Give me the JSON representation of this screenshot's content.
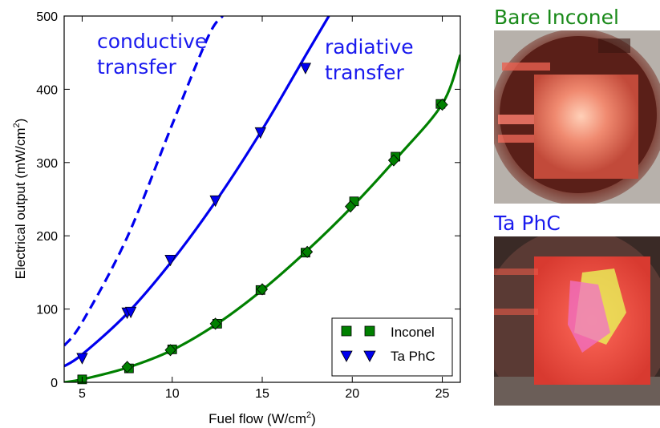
{
  "colors": {
    "inconel": "#008000",
    "taphc": "#0000ee",
    "annotation": "#1a1aee",
    "photo_title_inconel": "#1a8a1a",
    "photo_title_taphc": "#1a1aee"
  },
  "chart_data": {
    "type": "scatter",
    "xlabel": "Fuel flow (W/cm",
    "xlabel_sup": "2",
    "xlabel_tail": ")",
    "ylabel": "Electrical output (mW/cm",
    "ylabel_sup": "2",
    "ylabel_tail": ")",
    "xlim": [
      4,
      26
    ],
    "ylim": [
      0,
      500
    ],
    "xticks": [
      5,
      10,
      15,
      20,
      25
    ],
    "yticks": [
      0,
      100,
      200,
      300,
      400,
      500
    ],
    "grid": false,
    "legend_position": "lower-right",
    "series": [
      {
        "name": "Inconel",
        "marker": "square",
        "color": "#008000",
        "x": [
          5.0,
          7.6,
          10.0,
          12.5,
          14.9,
          17.4,
          20.1,
          22.4,
          24.9
        ],
        "y": [
          4,
          19,
          45,
          80,
          126,
          177,
          247,
          308,
          380
        ]
      },
      {
        "name": "Inconel",
        "marker": "diamond",
        "color": "#008000",
        "x": [
          7.5,
          9.9,
          12.4,
          15.0,
          17.5,
          19.9,
          22.3,
          25.0
        ],
        "y": [
          21,
          44,
          80,
          127,
          178,
          240,
          303,
          379
        ]
      },
      {
        "name": "Ta PhC",
        "marker": "triangle-down",
        "color": "#0000ee",
        "x": [
          5.0,
          7.5,
          7.7,
          9.9,
          12.4,
          14.9,
          17.4
        ],
        "y": [
          33,
          95,
          96,
          167,
          248,
          341,
          429
        ]
      }
    ],
    "fits": [
      {
        "label": "radiative transfer",
        "style": "solid",
        "color": "#0000ee",
        "x": [
          4.0,
          5.0,
          7.5,
          10.0,
          12.5,
          15.0,
          17.5,
          18.7
        ],
        "y": [
          22,
          38,
          94,
          166,
          250,
          345,
          450,
          500
        ]
      },
      {
        "label": "conductive transfer",
        "style": "dashed",
        "color": "#0000ee",
        "x": [
          4.0,
          5.0,
          7.5,
          10.0,
          12.0,
          12.8
        ],
        "y": [
          50,
          82,
          198,
          352,
          472,
          500
        ]
      },
      {
        "label": "",
        "style": "solid",
        "color": "#008000",
        "x": [
          4.0,
          5.0,
          7.5,
          10.0,
          12.5,
          15.0,
          17.5,
          20.0,
          22.5,
          25.0,
          26.0
        ],
        "y": [
          0,
          4,
          20,
          44,
          80,
          126,
          180,
          240,
          307,
          380,
          447
        ]
      }
    ],
    "annotations": [
      {
        "text": "conductive",
        "color": "#1a1aee"
      },
      {
        "text": "transfer",
        "color": "#1a1aee"
      },
      {
        "text": "radiative",
        "color": "#1a1aee"
      },
      {
        "text": "transfer",
        "color": "#1a1aee"
      }
    ],
    "legend": [
      {
        "label": "Inconel",
        "marker": "square",
        "color": "#008000"
      },
      {
        "label": "Ta PhC",
        "marker": "triangle-down",
        "color": "#0000ee"
      }
    ]
  },
  "photos": [
    {
      "title": "Bare Inconel",
      "icon": "inconel-photo"
    },
    {
      "title": "Ta PhC",
      "icon": "taphc-photo"
    }
  ]
}
